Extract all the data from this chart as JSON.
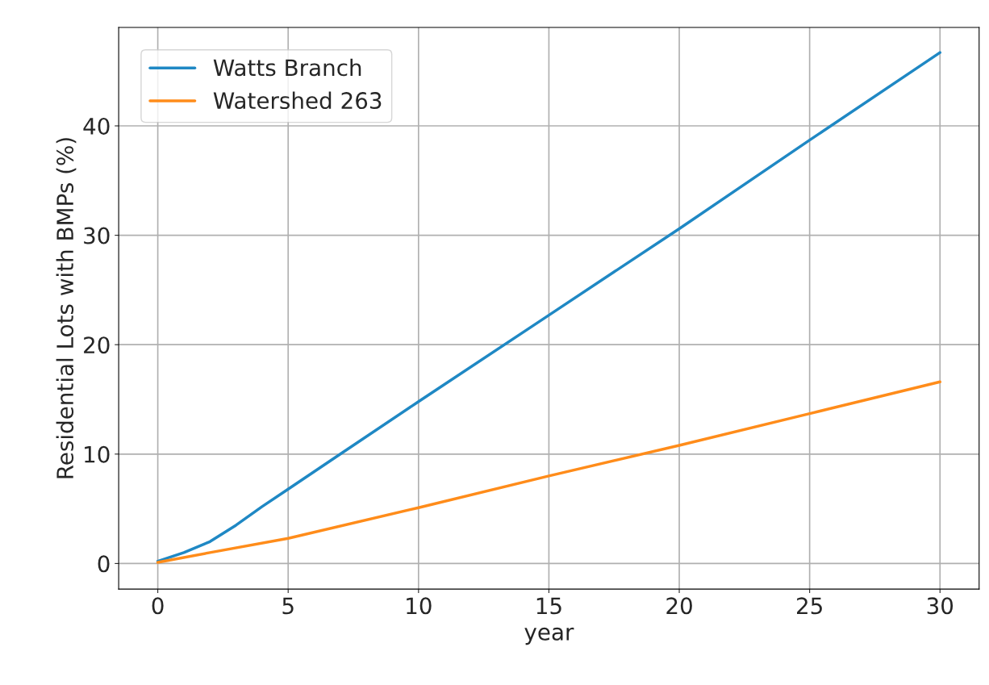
{
  "chart_data": {
    "type": "line",
    "xlabel": "year",
    "ylabel": "Residential Lots with BMPs (%)",
    "xlim": [
      -1.5,
      31.5
    ],
    "xticks": [
      0,
      5,
      10,
      15,
      20,
      25,
      30
    ],
    "ylim": [
      -2.34,
      49.0
    ],
    "yticks": [
      0,
      10,
      20,
      30,
      40
    ],
    "grid": true,
    "legend": "top left",
    "series": [
      {
        "name": "Watts Branch",
        "color": "#1f88c4",
        "x": [
          0,
          1,
          2,
          3,
          4,
          5,
          7,
          10,
          15,
          20,
          25,
          30
        ],
        "values": [
          0.2,
          1.0,
          2.0,
          3.5,
          5.2,
          6.8,
          10.0,
          14.8,
          22.7,
          30.6,
          38.7,
          46.7
        ]
      },
      {
        "name": "Watershed 263",
        "color": "#ff8c1a",
        "x": [
          0,
          2,
          5,
          10,
          15,
          20,
          25,
          30
        ],
        "values": [
          0.1,
          1.0,
          2.3,
          5.1,
          8.0,
          10.8,
          13.7,
          16.6
        ]
      }
    ]
  }
}
